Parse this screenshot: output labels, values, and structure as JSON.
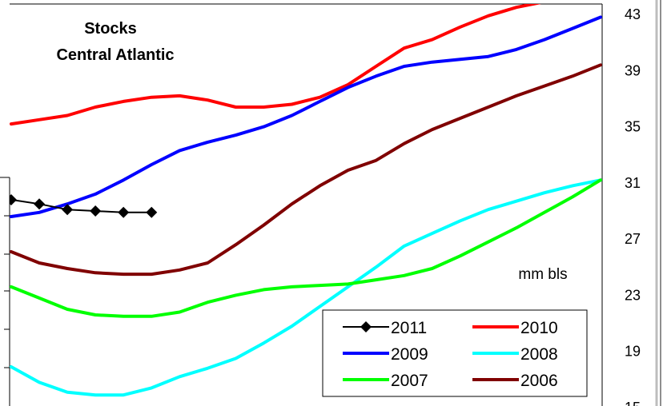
{
  "chart_data": {
    "type": "line",
    "title": "Stocks",
    "subtitle": "Central Atlantic",
    "ylabel": "mm bls",
    "ylim": [
      15,
      43
    ],
    "y_ticks": [
      43,
      39,
      35,
      31,
      27,
      23,
      19,
      15
    ],
    "y_axis_position": "right",
    "x_points": 22,
    "grid": false,
    "legend_position": "bottom-right",
    "legend_order": [
      "2011",
      "2010",
      "2009",
      "2008",
      "2007",
      "2006"
    ],
    "series": [
      {
        "name": "2010",
        "color": "#ff0000",
        "marker": "none",
        "values": [
          35.2,
          35.5,
          35.8,
          36.4,
          36.8,
          37.1,
          37.2,
          36.9,
          36.4,
          36.4,
          36.6,
          37.1,
          38.0,
          39.3,
          40.6,
          41.2,
          42.1,
          42.9,
          43.5,
          43.9,
          44.5,
          44.2
        ]
      },
      {
        "name": "2009",
        "color": "#0000ff",
        "marker": "none",
        "values": [
          28.6,
          28.9,
          29.5,
          30.2,
          31.2,
          32.3,
          33.3,
          33.9,
          34.4,
          35.0,
          35.8,
          36.8,
          37.8,
          38.6,
          39.3,
          39.6,
          39.8,
          40.0,
          40.5,
          41.2,
          42.0,
          42.8
        ]
      },
      {
        "name": "2008",
        "color": "#00ffff",
        "marker": "none",
        "values": [
          17.9,
          16.8,
          16.1,
          15.9,
          15.9,
          16.4,
          17.2,
          17.8,
          18.5,
          19.6,
          20.8,
          22.2,
          23.6,
          25.0,
          26.5,
          27.4,
          28.3,
          29.1,
          29.7,
          30.3,
          30.8,
          31.2
        ]
      },
      {
        "name": "2007",
        "color": "#00ff00",
        "marker": "none",
        "values": [
          23.6,
          22.8,
          22.0,
          21.6,
          21.5,
          21.5,
          21.8,
          22.5,
          23.0,
          23.4,
          23.6,
          23.7,
          23.8,
          24.1,
          24.4,
          24.9,
          25.8,
          26.8,
          27.8,
          28.9,
          30.0,
          31.2
        ]
      },
      {
        "name": "2006",
        "color": "#800000",
        "marker": "none",
        "values": [
          26.1,
          25.3,
          24.9,
          24.6,
          24.5,
          24.5,
          24.8,
          25.3,
          26.6,
          28.0,
          29.5,
          30.8,
          31.9,
          32.6,
          33.8,
          34.8,
          35.6,
          36.4,
          37.2,
          37.9,
          38.6,
          39.4
        ]
      },
      {
        "name": "2011",
        "color": "#000000",
        "marker": "diamond",
        "values": [
          29.8,
          29.5,
          29.1,
          29.0,
          28.9,
          28.9
        ]
      }
    ]
  }
}
